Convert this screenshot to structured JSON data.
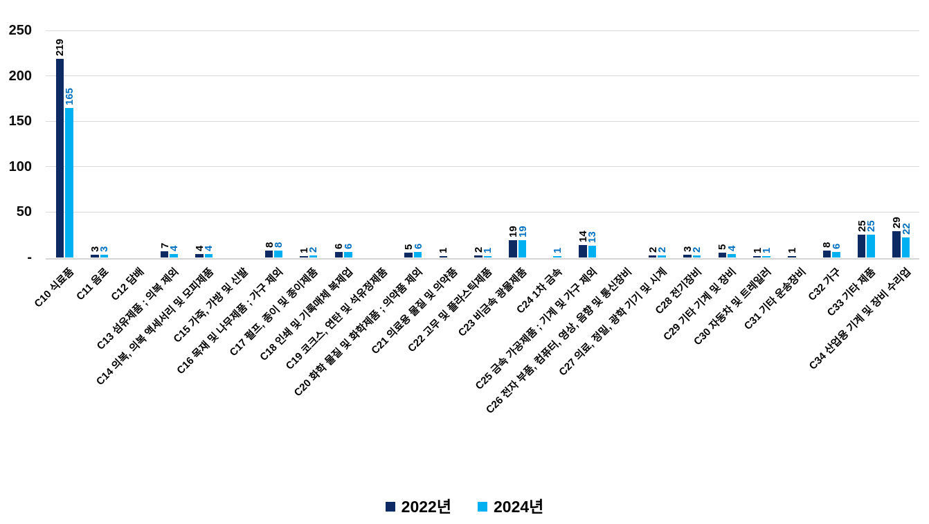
{
  "chart_data": {
    "type": "bar",
    "title": "",
    "xlabel": "",
    "ylabel": "",
    "ylim": [
      0,
      250
    ],
    "grid": true,
    "legend_position": "bottom",
    "yticks": [
      {
        "value": 0,
        "label": "-"
      },
      {
        "value": 50,
        "label": "50"
      },
      {
        "value": 100,
        "label": "100"
      },
      {
        "value": 150,
        "label": "150"
      },
      {
        "value": 200,
        "label": "200"
      },
      {
        "value": 250,
        "label": "250"
      }
    ],
    "categories": [
      "C10 식료품",
      "C11 음료",
      "C12 담배",
      "C13 섬유제품 ; 의복 제외",
      "C14 의복, 의복 액세서리 및 모피제품",
      "C15 가죽, 가방 및 신발",
      "C16 목재 및 나무제품 ; 가구 제외",
      "C17 펄프, 종이 및 종이제품",
      "C18 인쇄 및 기록매체 복제업",
      "C19 코크스, 연탄 및 석유정제품",
      "C20 화학 물질 및 화학제품 ; 의약품 제외",
      "C21 의료용 물질 및 의약품",
      "C22 고무 및 플라스틱제품",
      "C23 비금속 광물제품",
      "C24 1차 금속",
      "C25 금속 가공제품 ; 기계 및 가구 제외",
      "C26 전자 부품, 컴퓨터, 영상, 음향 및 통신장비",
      "C27 의료, 정밀, 광학 기기 및 시계",
      "C28 전기장비",
      "C29 기타 기계 및 장비",
      "C30 자동차 및 트레일러",
      "C31 기타 운송장비",
      "C32 가구",
      "C33 기타 제품",
      "C34 산업용 기계 및 장비 수리업"
    ],
    "series": [
      {
        "name": "2022년",
        "color": "#0d2a63",
        "label_color": "#000000",
        "values": [
          219,
          3,
          null,
          7,
          4,
          null,
          8,
          1,
          6,
          null,
          5,
          1,
          2,
          19,
          null,
          14,
          null,
          2,
          3,
          5,
          1,
          1,
          8,
          25,
          29
        ]
      },
      {
        "name": "2024년",
        "color": "#00b0f0",
        "label_color": "#0070c0",
        "values": [
          165,
          3,
          null,
          4,
          4,
          null,
          8,
          2,
          6,
          null,
          6,
          null,
          1,
          19,
          1,
          13,
          null,
          2,
          2,
          4,
          1,
          null,
          6,
          25,
          22
        ]
      }
    ],
    "colors": {
      "gridline": "#d9d9d9",
      "axis_line": "#d6d6d6",
      "tick_text": "#0d0d0d"
    }
  }
}
